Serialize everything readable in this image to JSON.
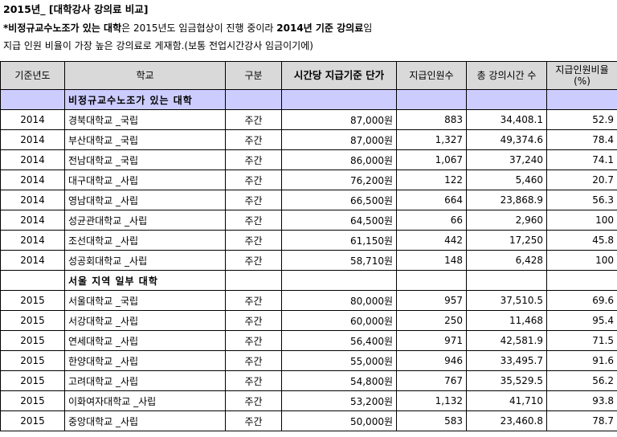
{
  "title": "2015년_ [대학강사 강의료 비교]",
  "note1": {
    "part1": "*비정규교수노조가 있는 대학",
    "part2": "은 2015년도 임금협상이 진행 중이라 ",
    "part3": "2014년 기준 강의료",
    "part4": "임"
  },
  "note2": "지급 인원 비율이 가장 높은 강의료로 게재함.(보통 전업시간강사 임금이기에)",
  "headers": {
    "year": "기준년도",
    "school": "학교",
    "type": "구분",
    "rate": "시간당 지급기준 단가",
    "paid": "지급인원수",
    "hours": "총 강의시간 수",
    "ratio_line1": "지급인원비율",
    "ratio_line2": "(%)"
  },
  "sections": [
    {
      "label": "비정규교수노조가 있는 대학",
      "rows": [
        {
          "year": "2014",
          "school": "경북대학교 _국립",
          "type": "주간",
          "rate": "87,000원",
          "paid": "883",
          "hours": "34,408.1",
          "ratio": "52.9"
        },
        {
          "year": "2014",
          "school": "부산대학교 _국립",
          "type": "주간",
          "rate": "87,000원",
          "paid": "1,327",
          "hours": "49,374.6",
          "ratio": "78.4"
        },
        {
          "year": "2014",
          "school": "전남대학교 _국립",
          "type": "주간",
          "rate": "86,000원",
          "paid": "1,067",
          "hours": "37,240",
          "ratio": "74.1"
        },
        {
          "year": "2014",
          "school": "대구대학교 _사립",
          "type": "주간",
          "rate": "76,200원",
          "paid": "122",
          "hours": "5,460",
          "ratio": "20.7"
        },
        {
          "year": "2014",
          "school": "영남대학교 _사립",
          "type": "주간",
          "rate": "66,500원",
          "paid": "664",
          "hours": "23,868.9",
          "ratio": "56.3"
        },
        {
          "year": "2014",
          "school": "성균관대학교 _사립",
          "type": "주간",
          "rate": "64,500원",
          "paid": "66",
          "hours": "2,960",
          "ratio": "100"
        },
        {
          "year": "2014",
          "school": "조선대학교 _사립",
          "type": "주간",
          "rate": "61,150원",
          "paid": "442",
          "hours": "17,250",
          "ratio": "45.8"
        },
        {
          "year": "2014",
          "school": "성공회대학교 _사립",
          "type": "주간",
          "rate": "58,710원",
          "paid": "148",
          "hours": "6,428",
          "ratio": "100"
        }
      ]
    },
    {
      "label": "서울 지역 일부 대학",
      "rows": [
        {
          "year": "2015",
          "school": "서울대학교 _국립",
          "type": "주간",
          "rate": "80,000원",
          "paid": "957",
          "hours": "37,510.5",
          "ratio": "69.6"
        },
        {
          "year": "2015",
          "school": "서강대학교 _사립",
          "type": "주간",
          "rate": "60,000원",
          "paid": "250",
          "hours": "11,468",
          "ratio": "95.4"
        },
        {
          "year": "2015",
          "school": "연세대학교 _사립",
          "type": "주간",
          "rate": "56,400원",
          "paid": "971",
          "hours": "42,581.9",
          "ratio": "71.5"
        },
        {
          "year": "2015",
          "school": "한양대학교 _사립",
          "type": "주간",
          "rate": "55,000원",
          "paid": "946",
          "hours": "33,495.7",
          "ratio": "91.6"
        },
        {
          "year": "2015",
          "school": "고려대학교 _사립",
          "type": "주간",
          "rate": "54,800원",
          "paid": "767",
          "hours": "35,529.5",
          "ratio": "56.2"
        },
        {
          "year": "2015",
          "school": "이화여자대학교 _사립",
          "type": "주간",
          "rate": "53,200원",
          "paid": "1,132",
          "hours": "41,710",
          "ratio": "93.8"
        },
        {
          "year": "2015",
          "school": "중앙대학교 _사립",
          "type": "주간",
          "rate": "50,000원",
          "paid": "583",
          "hours": "23,460.8",
          "ratio": "78.7"
        }
      ]
    }
  ]
}
